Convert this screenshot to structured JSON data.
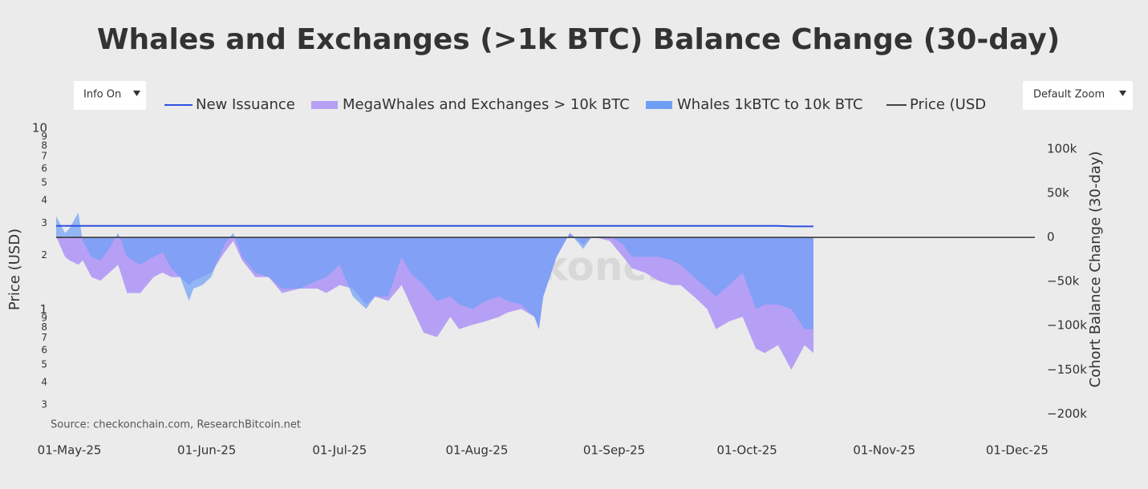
{
  "chart_data": {
    "type": "area",
    "title": "Whales and Exchanges (>1k BTC) Balance Change (30-day)",
    "controls": [
      "Info On",
      "Default Zoom"
    ],
    "source": "Source: checkonchain.com, ResearchBitcoin.net",
    "watermark": "checkonchain",
    "y_label": "Price (USD)",
    "y2_label": "Cohort Balance Change (30-day)",
    "log_y": true,
    "xlim": [
      "2025-04-28",
      "2025-12-05"
    ],
    "xticks": [
      {
        "value": "2025-05-01",
        "label": "01-May-25"
      },
      {
        "value": "2025-06-01",
        "label": "01-Jun-25"
      },
      {
        "value": "2025-07-01",
        "label": "01-Jul-25"
      },
      {
        "value": "2025-08-01",
        "label": "01-Aug-25"
      },
      {
        "value": "2025-09-01",
        "label": "01-Sep-25"
      },
      {
        "value": "2025-10-01",
        "label": "01-Oct-25"
      },
      {
        "value": "2025-11-01",
        "label": "01-Nov-25"
      },
      {
        "value": "2025-12-01",
        "label": "01-Dec-25"
      }
    ],
    "ylim": [
      0.2,
      11.3
    ],
    "yticks": [
      {
        "value": 0.3,
        "label": "3"
      },
      {
        "value": 0.4,
        "label": "4"
      },
      {
        "value": 0.5,
        "label": "5"
      },
      {
        "value": 0.6,
        "label": "6"
      },
      {
        "value": 0.7,
        "label": "7"
      },
      {
        "value": 0.8,
        "label": "8"
      },
      {
        "value": 0.9,
        "label": "9"
      },
      1,
      2,
      3,
      4,
      5,
      6,
      7,
      8,
      9,
      10
    ],
    "y2lim": [
      -226000,
      134500
    ],
    "y2ticks": [
      {
        "value": 100000,
        "label": "100k"
      },
      {
        "value": 50000,
        "label": "50k"
      },
      0,
      {
        "value": -50000,
        "label": "−50k"
      },
      {
        "value": -100000,
        "label": "−100k"
      },
      {
        "value": -150000,
        "label": "−150k"
      },
      {
        "value": -200000,
        "label": "−200k"
      }
    ],
    "x": [
      "2025-04-28",
      "2025-04-30",
      "2025-05-01",
      "2025-05-03",
      "2025-05-04",
      "2025-05-06",
      "2025-05-08",
      "2025-05-10",
      "2025-05-12",
      "2025-05-14",
      "2025-05-17",
      "2025-05-20",
      "2025-05-22",
      "2025-05-24",
      "2025-05-26",
      "2025-05-28",
      "2025-05-29",
      "2025-05-31",
      "2025-06-02",
      "2025-06-05",
      "2025-06-07",
      "2025-06-09",
      "2025-06-12",
      "2025-06-15",
      "2025-06-18",
      "2025-06-22",
      "2025-06-26",
      "2025-06-28",
      "2025-07-01",
      "2025-07-04",
      "2025-07-07",
      "2025-07-09",
      "2025-07-12",
      "2025-07-15",
      "2025-07-17",
      "2025-07-20",
      "2025-07-23",
      "2025-07-26",
      "2025-07-28",
      "2025-07-31",
      "2025-08-03",
      "2025-08-06",
      "2025-08-08",
      "2025-08-11",
      "2025-08-14",
      "2025-08-15",
      "2025-08-16",
      "2025-08-19",
      "2025-08-22",
      "2025-08-25",
      "2025-08-27",
      "2025-08-31",
      "2025-09-03",
      "2025-09-05",
      "2025-09-08",
      "2025-09-11",
      "2025-09-14",
      "2025-09-16",
      "2025-09-19",
      "2025-09-22",
      "2025-09-24",
      "2025-09-27",
      "2025-09-30",
      "2025-10-03",
      "2025-10-05",
      "2025-10-08",
      "2025-10-11",
      "2025-10-14",
      "2025-10-16"
    ],
    "series": [
      {
        "name": "New Issuance",
        "color": "#2f4fe0",
        "kind": "line",
        "axis": "y2",
        "values": [
          13000,
          13000,
          13000,
          13000,
          13000,
          13000,
          13000,
          13000,
          13000,
          13000,
          13000,
          13000,
          13000,
          13000,
          13000,
          13000,
          13000,
          13000,
          13000,
          13000,
          13000,
          13000,
          13000,
          13000,
          13000,
          13000,
          13000,
          13000,
          13000,
          13000,
          13000,
          13000,
          13000,
          13000,
          13000,
          13000,
          13000,
          13000,
          13000,
          13000,
          13000,
          13000,
          13000,
          13000,
          13000,
          13000,
          13000,
          13000,
          13000,
          13000,
          13000,
          13000,
          13000,
          13000,
          13000,
          13000,
          13000,
          13000,
          13000,
          13000,
          13000,
          13000,
          13000,
          13000,
          13000,
          13000,
          12500,
          12500,
          12500
        ]
      },
      {
        "name": "MegaWhales and Exchanges > 10k BTC",
        "color": "#b5a0f5",
        "kind": "area",
        "axis": "y2",
        "values": [
          1000,
          -22000,
          -26000,
          -31000,
          -26000,
          -45000,
          -49000,
          -40000,
          -31000,
          -63000,
          -63000,
          -45000,
          -40000,
          -45000,
          -45000,
          -54000,
          -49000,
          -45000,
          -40000,
          -17000,
          -4000,
          -26000,
          -45000,
          -45000,
          -63000,
          -58000,
          -58000,
          -63000,
          -54000,
          -58000,
          -76000,
          -67000,
          -72000,
          -54000,
          -76000,
          -108000,
          -113000,
          -90000,
          -104000,
          -99000,
          -95000,
          -90000,
          -85000,
          -81000,
          -90000,
          -104000,
          -67000,
          -22000,
          5000,
          -8000,
          1000,
          -4000,
          -22000,
          -35000,
          -40000,
          -49000,
          -54000,
          -54000,
          -67000,
          -81000,
          -104000,
          -95000,
          -90000,
          -126000,
          -131000,
          -122000,
          -150000,
          -122000,
          -131000
        ]
      },
      {
        "name": "Whales 1kBTC to 10k BTC",
        "color": "#6f9ff5",
        "kind": "area",
        "axis": "y2",
        "values": [
          24000,
          5000,
          10000,
          28000,
          -4000,
          -22000,
          -26000,
          -13000,
          5000,
          -22000,
          -31000,
          -22000,
          -17000,
          -35000,
          -45000,
          -72000,
          -58000,
          -54000,
          -45000,
          -8000,
          5000,
          -22000,
          -40000,
          -45000,
          -58000,
          -58000,
          -49000,
          -45000,
          -31000,
          -67000,
          -81000,
          -67000,
          -67000,
          -22000,
          -40000,
          -54000,
          -72000,
          -67000,
          -76000,
          -81000,
          -72000,
          -67000,
          -72000,
          -76000,
          -90000,
          -104000,
          -67000,
          -22000,
          5000,
          -13000,
          1000,
          1000,
          -8000,
          -22000,
          -22000,
          -22000,
          -26000,
          -31000,
          -45000,
          -58000,
          -67000,
          -54000,
          -40000,
          -81000,
          -76000,
          -76000,
          -81000,
          -104000,
          -104000
        ]
      },
      {
        "name": "Price (USD",
        "color": "#444444",
        "kind": "line",
        "axis": "y"
      }
    ]
  }
}
